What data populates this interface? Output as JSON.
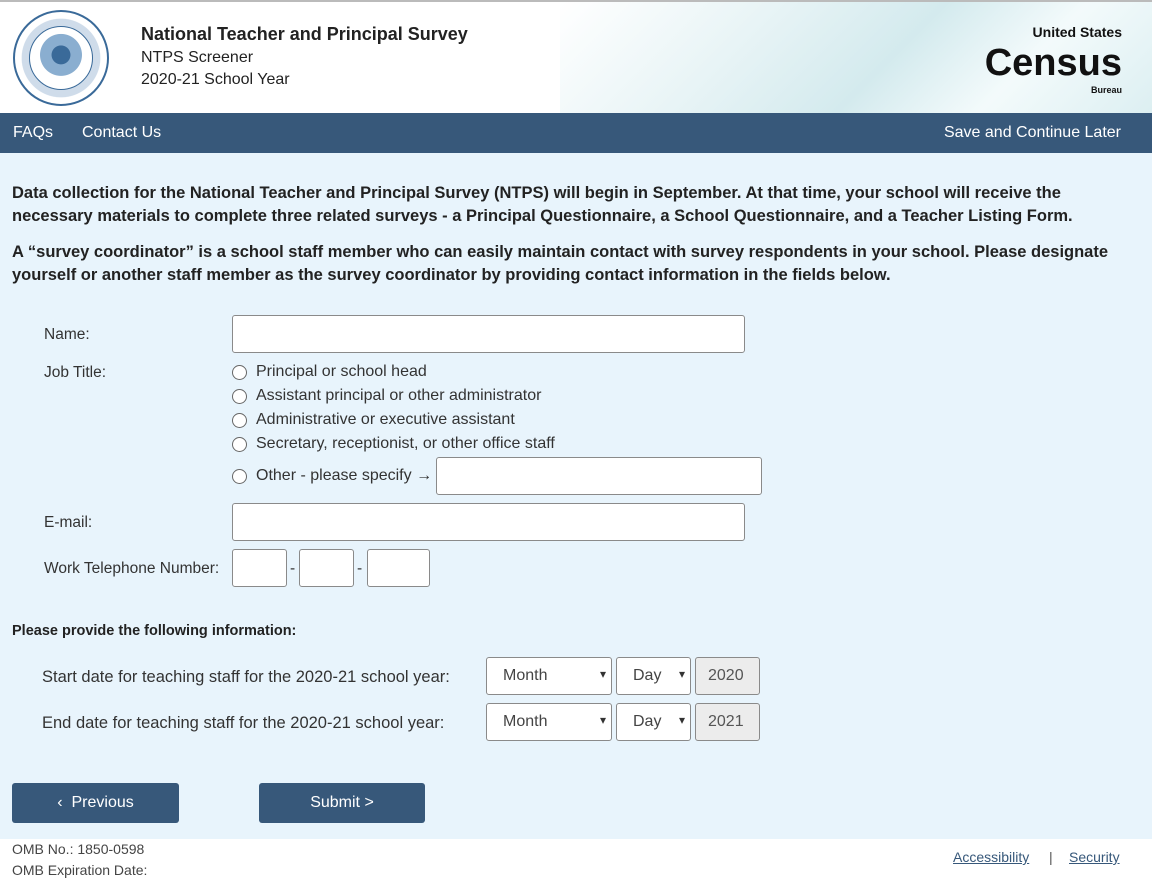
{
  "header": {
    "logo": "Department of Education - United States of America",
    "title": "National Teacher and Principal Survey",
    "subtitle": "NTPS Screener",
    "year": "2020-21 School Year",
    "census_logo": {
      "top": "United States",
      "main": "Census",
      "bottom": "Bureau"
    }
  },
  "nav": {
    "faqs": "FAQs",
    "contact": "Contact Us",
    "save": "Save and Continue Later"
  },
  "intro": {
    "p1": "Data collection for the National Teacher and Principal Survey (NTPS) will begin in September. At that time, your school will receive the necessary materials to complete three related surveys - a Principal Questionnaire, a School Questionnaire, and a Teacher Listing Form.",
    "p2": "A “survey coordinator” is a school staff member who can easily maintain contact with survey respondents in your school. Please designate yourself or another staff member as the survey coordinator by providing contact information in the fields below."
  },
  "form": {
    "name_label": "Name:",
    "name_value": "",
    "job_label": "Job Title:",
    "job_options": [
      "Principal or school head",
      "Assistant principal or other administrator",
      "Administrative or executive assistant",
      "Secretary, receptionist, or other office staff",
      "Other - please specify →"
    ],
    "email_label": "E-mail:",
    "email_value": "",
    "phone_label": "Work Telephone Number:",
    "phone_sep": "-"
  },
  "dates": {
    "heading": "Please provide the following information:",
    "start_label": "Start date for teaching staff for the 2020-21 school year:",
    "end_label": "End date for teaching staff for the 2020-21 school year:",
    "month": "Month",
    "day": "Day",
    "start_year": "2020",
    "end_year": "2021"
  },
  "buttons": {
    "previous": "Previous",
    "submit": "Submit >"
  },
  "footer": {
    "omb": "OMB No.: 1850-0598",
    "expiration": "OMB Expiration Date:",
    "accessibility": "Accessibility",
    "sep": "|",
    "security": "Security"
  },
  "colors": {
    "nav": "#37587a",
    "background": "#e8f4fc"
  }
}
